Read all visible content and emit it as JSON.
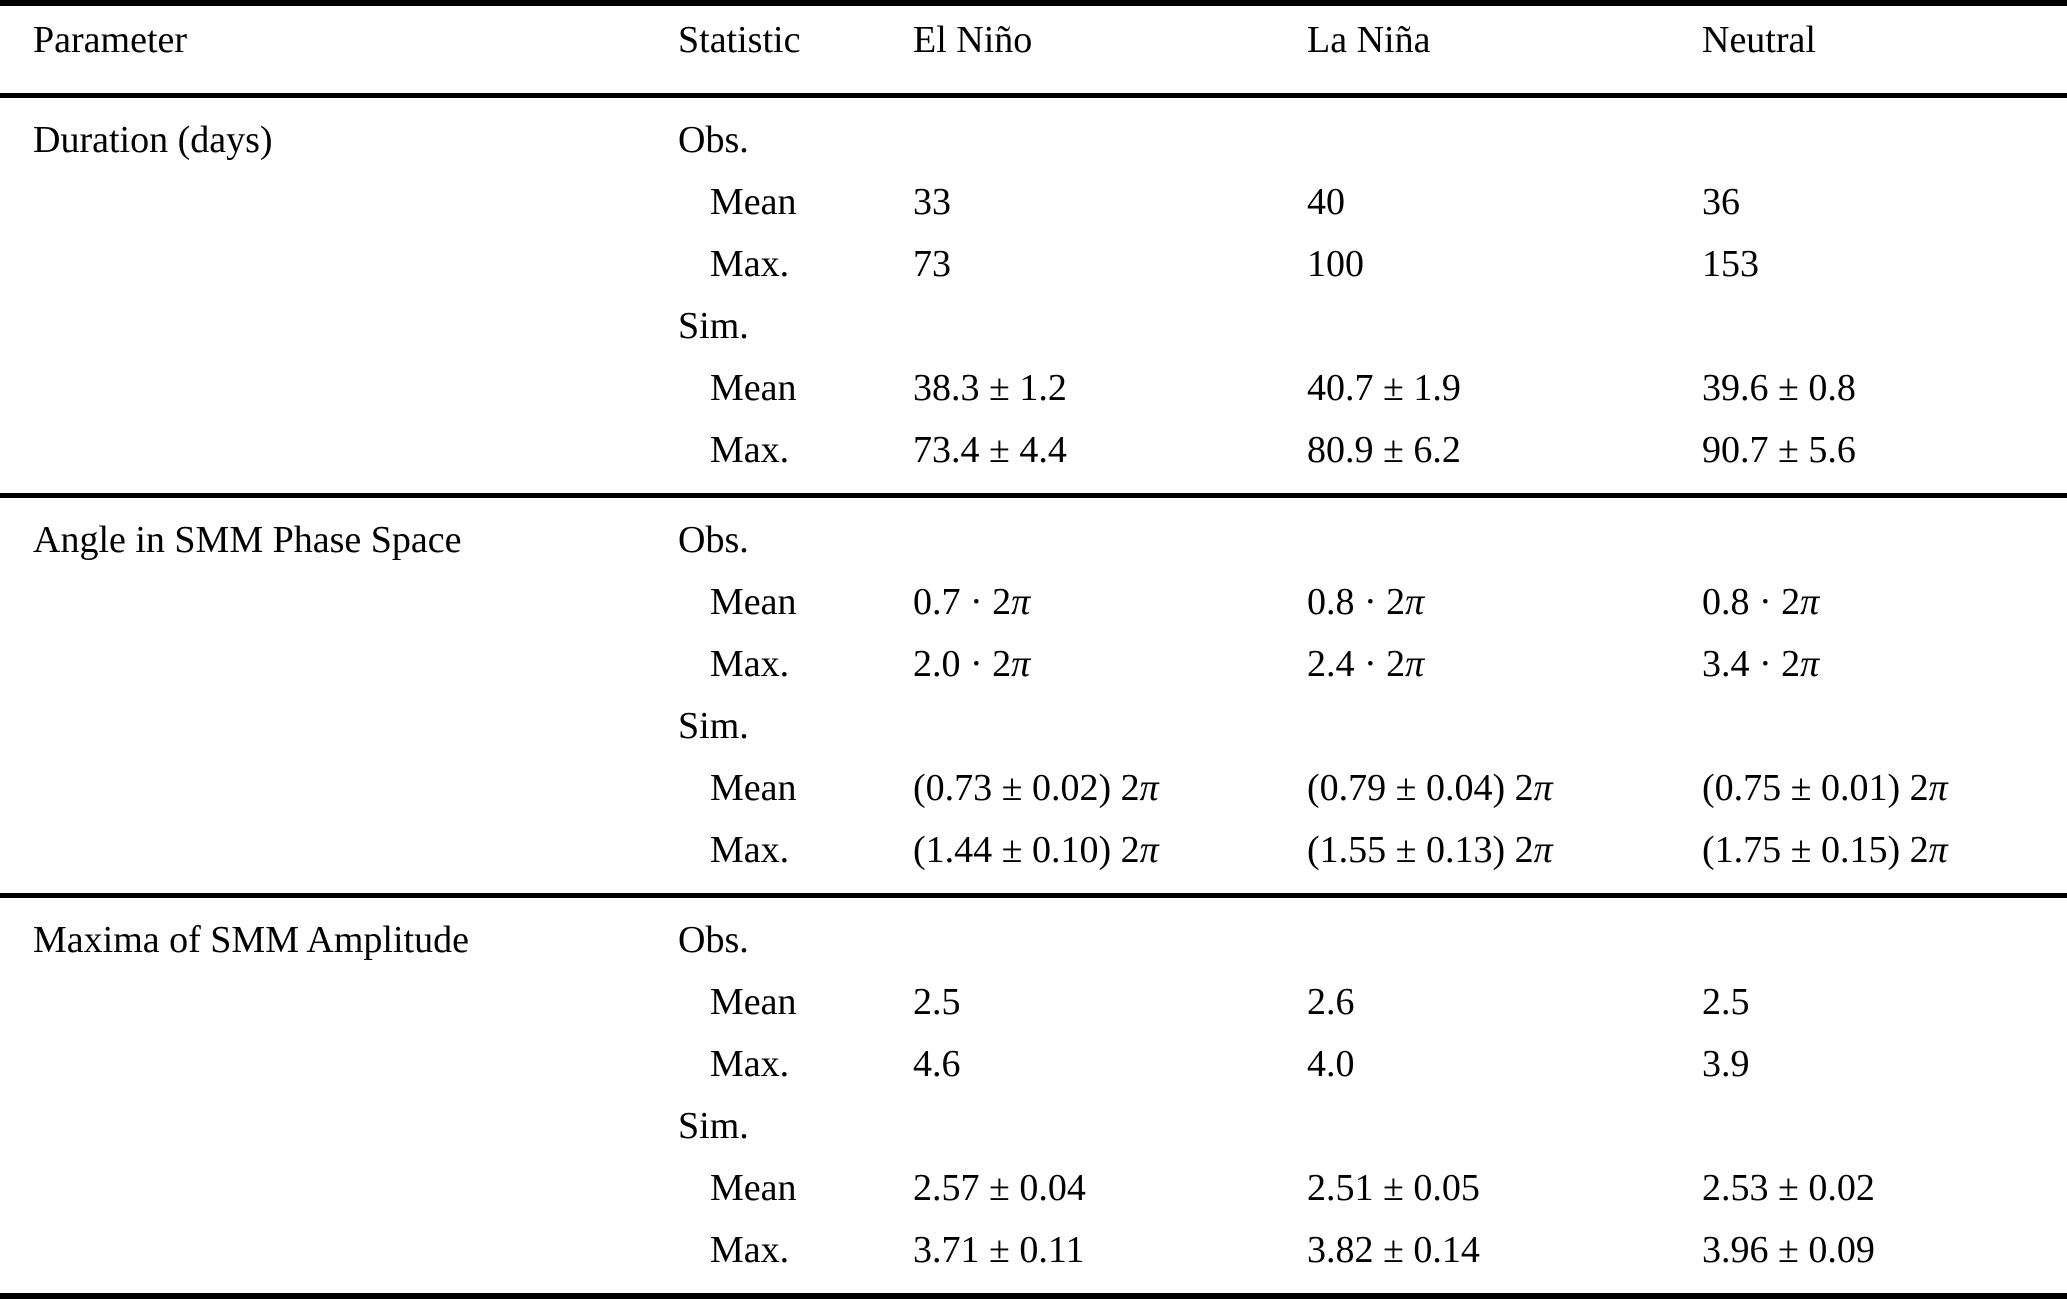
{
  "table": {
    "columns": [
      "Parameter",
      "Statistic",
      "El Niño",
      "La Niña",
      "Neutral"
    ],
    "sections": [
      {
        "parameter": "Duration (days)",
        "rows": [
          {
            "stat": "Obs.",
            "values": [
              "",
              "",
              ""
            ]
          },
          {
            "stat": "Mean",
            "values": [
              "33",
              "40",
              "36"
            ]
          },
          {
            "stat": "Max.",
            "values": [
              "73",
              "100",
              "153"
            ]
          },
          {
            "stat": "Sim.",
            "values": [
              "",
              "",
              ""
            ]
          },
          {
            "stat": "Mean",
            "values": [
              "38.3 ± 1.2",
              "40.7 ± 1.9",
              "39.6 ± 0.8"
            ]
          },
          {
            "stat": "Max.",
            "values": [
              "73.4 ± 4.4",
              "80.9 ± 6.2",
              "90.7 ± 5.6"
            ]
          }
        ]
      },
      {
        "parameter": "Angle in SMM Phase Space",
        "rows": [
          {
            "stat": "Obs.",
            "values": [
              "",
              "",
              ""
            ]
          },
          {
            "stat": "Mean",
            "values": [
              "0.7 · 2π",
              "0.8 · 2π",
              "0.8 · 2π"
            ]
          },
          {
            "stat": "Max.",
            "values": [
              "2.0 · 2π",
              "2.4 · 2π",
              "3.4 · 2π"
            ]
          },
          {
            "stat": "Sim.",
            "values": [
              "",
              "",
              ""
            ]
          },
          {
            "stat": "Mean",
            "values": [
              "(0.73 ± 0.02) 2π",
              "(0.79 ± 0.04) 2π",
              "(0.75 ± 0.01) 2π"
            ]
          },
          {
            "stat": "Max.",
            "values": [
              "(1.44 ± 0.10) 2π",
              "(1.55 ± 0.13) 2π",
              "(1.75 ± 0.15) 2π"
            ]
          }
        ]
      },
      {
        "parameter": "Maxima of SMM Amplitude",
        "rows": [
          {
            "stat": "Obs.",
            "values": [
              "",
              "",
              ""
            ]
          },
          {
            "stat": "Mean",
            "values": [
              "2.5",
              "2.6",
              "2.5"
            ]
          },
          {
            "stat": "Max.",
            "values": [
              "4.6",
              "4.0",
              "3.9"
            ]
          },
          {
            "stat": "Sim.",
            "values": [
              "",
              "",
              ""
            ]
          },
          {
            "stat": "Mean",
            "values": [
              "2.57 ± 0.04",
              "2.51 ± 0.05",
              "2.53 ± 0.02"
            ]
          },
          {
            "stat": "Max.",
            "values": [
              "3.71 ± 0.11",
              "3.82 ± 0.14",
              "3.96 ± 0.09"
            ]
          }
        ]
      }
    ]
  }
}
